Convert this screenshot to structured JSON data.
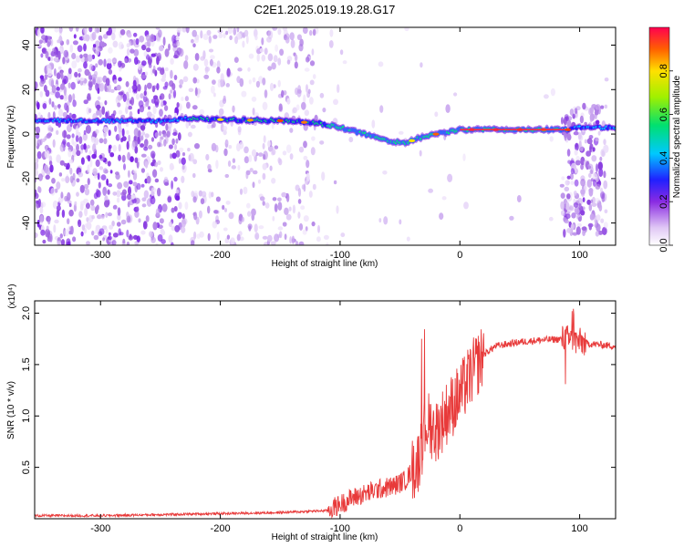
{
  "chart_data": [
    {
      "type": "heatmap",
      "title": "C2E1.2025.019.19.28.G17",
      "xlabel": "Height of straight line (km)",
      "ylabel": "Frequency (Hz)",
      "xlim": [
        -355,
        130
      ],
      "ylim": [
        -50,
        48
      ],
      "xticks": [
        "-300",
        "-200",
        "-100",
        "0",
        "100"
      ],
      "yticks": [
        "40",
        "20",
        "0",
        "-20",
        "-40"
      ],
      "colorbar": {
        "label": "Normalized spectral amplitude",
        "range": [
          0,
          1
        ],
        "ticks": [
          "0.0",
          "0.2",
          "0.4",
          "0.6",
          "0.8"
        ]
      },
      "ridge": {
        "x": [
          -355,
          -300,
          -250,
          -225,
          -200,
          -150,
          -120,
          -100,
          -80,
          -60,
          -45,
          -35,
          -20,
          0,
          20,
          50,
          90,
          100,
          130
        ],
        "y": [
          6,
          6,
          6,
          7,
          6.5,
          6,
          5,
          3,
          0,
          -3,
          -4,
          -2,
          0,
          2,
          2,
          2,
          2,
          3,
          3
        ]
      }
    },
    {
      "type": "line",
      "title": "",
      "xlabel": "Height of straight line (km)",
      "ylabel": "SNR (10 * v/v)",
      "y_multiplier": "(x10⁴)",
      "xlim": [
        -355,
        130
      ],
      "ylim": [
        0,
        2.12
      ],
      "xticks": [
        "-300",
        "-200",
        "-100",
        "0",
        "100"
      ],
      "yticks": [
        "2.0",
        "1.5",
        "1.0",
        "0.5"
      ],
      "series": [
        {
          "color": "#e83a3a",
          "x": [
            -355,
            -300,
            -250,
            -200,
            -150,
            -110,
            -90,
            -70,
            -55,
            -45,
            -35,
            -28,
            -20,
            -15,
            -10,
            0,
            10,
            20,
            30,
            50,
            70,
            90,
            95,
            100,
            110,
            130
          ],
          "y": [
            0.03,
            0.03,
            0.04,
            0.05,
            0.06,
            0.08,
            0.2,
            0.28,
            0.32,
            0.38,
            0.55,
            0.95,
            0.85,
            0.95,
            1.05,
            1.2,
            1.42,
            1.6,
            1.68,
            1.72,
            1.74,
            1.75,
            1.73,
            1.72,
            1.7,
            1.68
          ]
        }
      ]
    }
  ]
}
